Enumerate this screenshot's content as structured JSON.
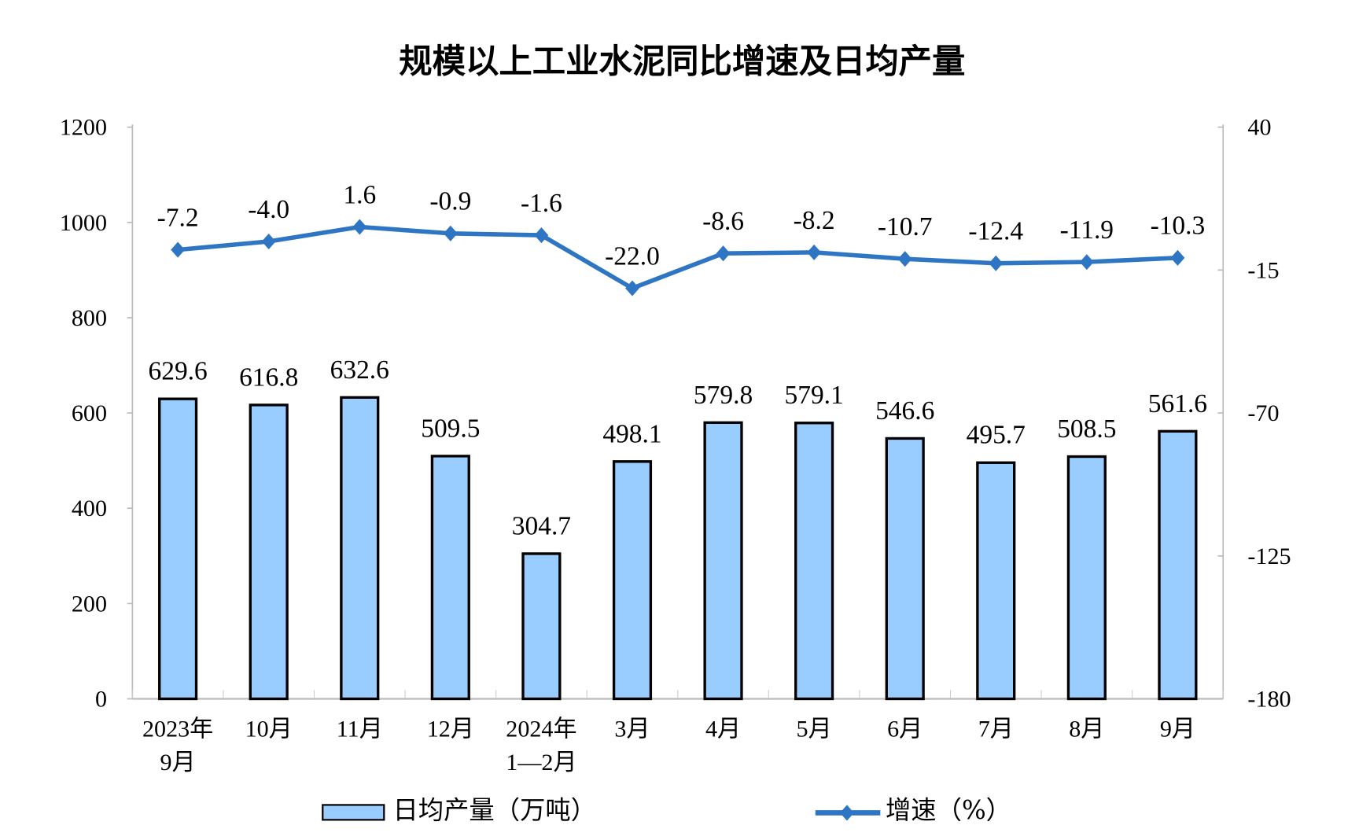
{
  "chart_data": {
    "type": "bar+line",
    "title": "规模以上工业水泥同比增速及日均产量",
    "categories": [
      [
        "2023年",
        "9月"
      ],
      [
        "10月"
      ],
      [
        "11月"
      ],
      [
        "12月"
      ],
      [
        "2024年",
        "1—2月"
      ],
      [
        "3月"
      ],
      [
        "4月"
      ],
      [
        "5月"
      ],
      [
        "6月"
      ],
      [
        "7月"
      ],
      [
        "8月"
      ],
      [
        "9月"
      ]
    ],
    "series": [
      {
        "name": "日均产量（万吨）",
        "type": "bar",
        "axis": "left",
        "color": "#99CCFF",
        "values": [
          629.6,
          616.8,
          632.6,
          509.5,
          304.7,
          498.1,
          579.8,
          579.1,
          546.6,
          495.7,
          508.5,
          561.6
        ],
        "labels": [
          "629.6",
          "616.8",
          "632.6",
          "509.5",
          "304.7",
          "498.1",
          "579.8",
          "579.1",
          "546.6",
          "495.7",
          "508.5",
          "561.6"
        ]
      },
      {
        "name": "增速（%）",
        "type": "line",
        "axis": "right",
        "color": "#2E75C4",
        "marker": "diamond",
        "values": [
          -7.2,
          -4.0,
          1.6,
          -0.9,
          -1.6,
          -22.0,
          -8.6,
          -8.2,
          -10.7,
          -12.4,
          -11.9,
          -10.3
        ],
        "labels": [
          "-7.2",
          "-4.0",
          "1.6",
          "-0.9",
          "-1.6",
          "-22.0",
          "-8.6",
          "-8.2",
          "-10.7",
          "-12.4",
          "-11.9",
          "-10.3"
        ]
      }
    ],
    "left_axis": {
      "ylim": [
        0,
        1200
      ],
      "ticks": [
        "0",
        "200",
        "400",
        "600",
        "800",
        "1000",
        "1200"
      ]
    },
    "right_axis": {
      "ylim": [
        -180,
        40
      ],
      "ticks": [
        "-180",
        "-125",
        "-70",
        "-15",
        "40"
      ]
    },
    "grid": false,
    "legend": "bottom"
  }
}
